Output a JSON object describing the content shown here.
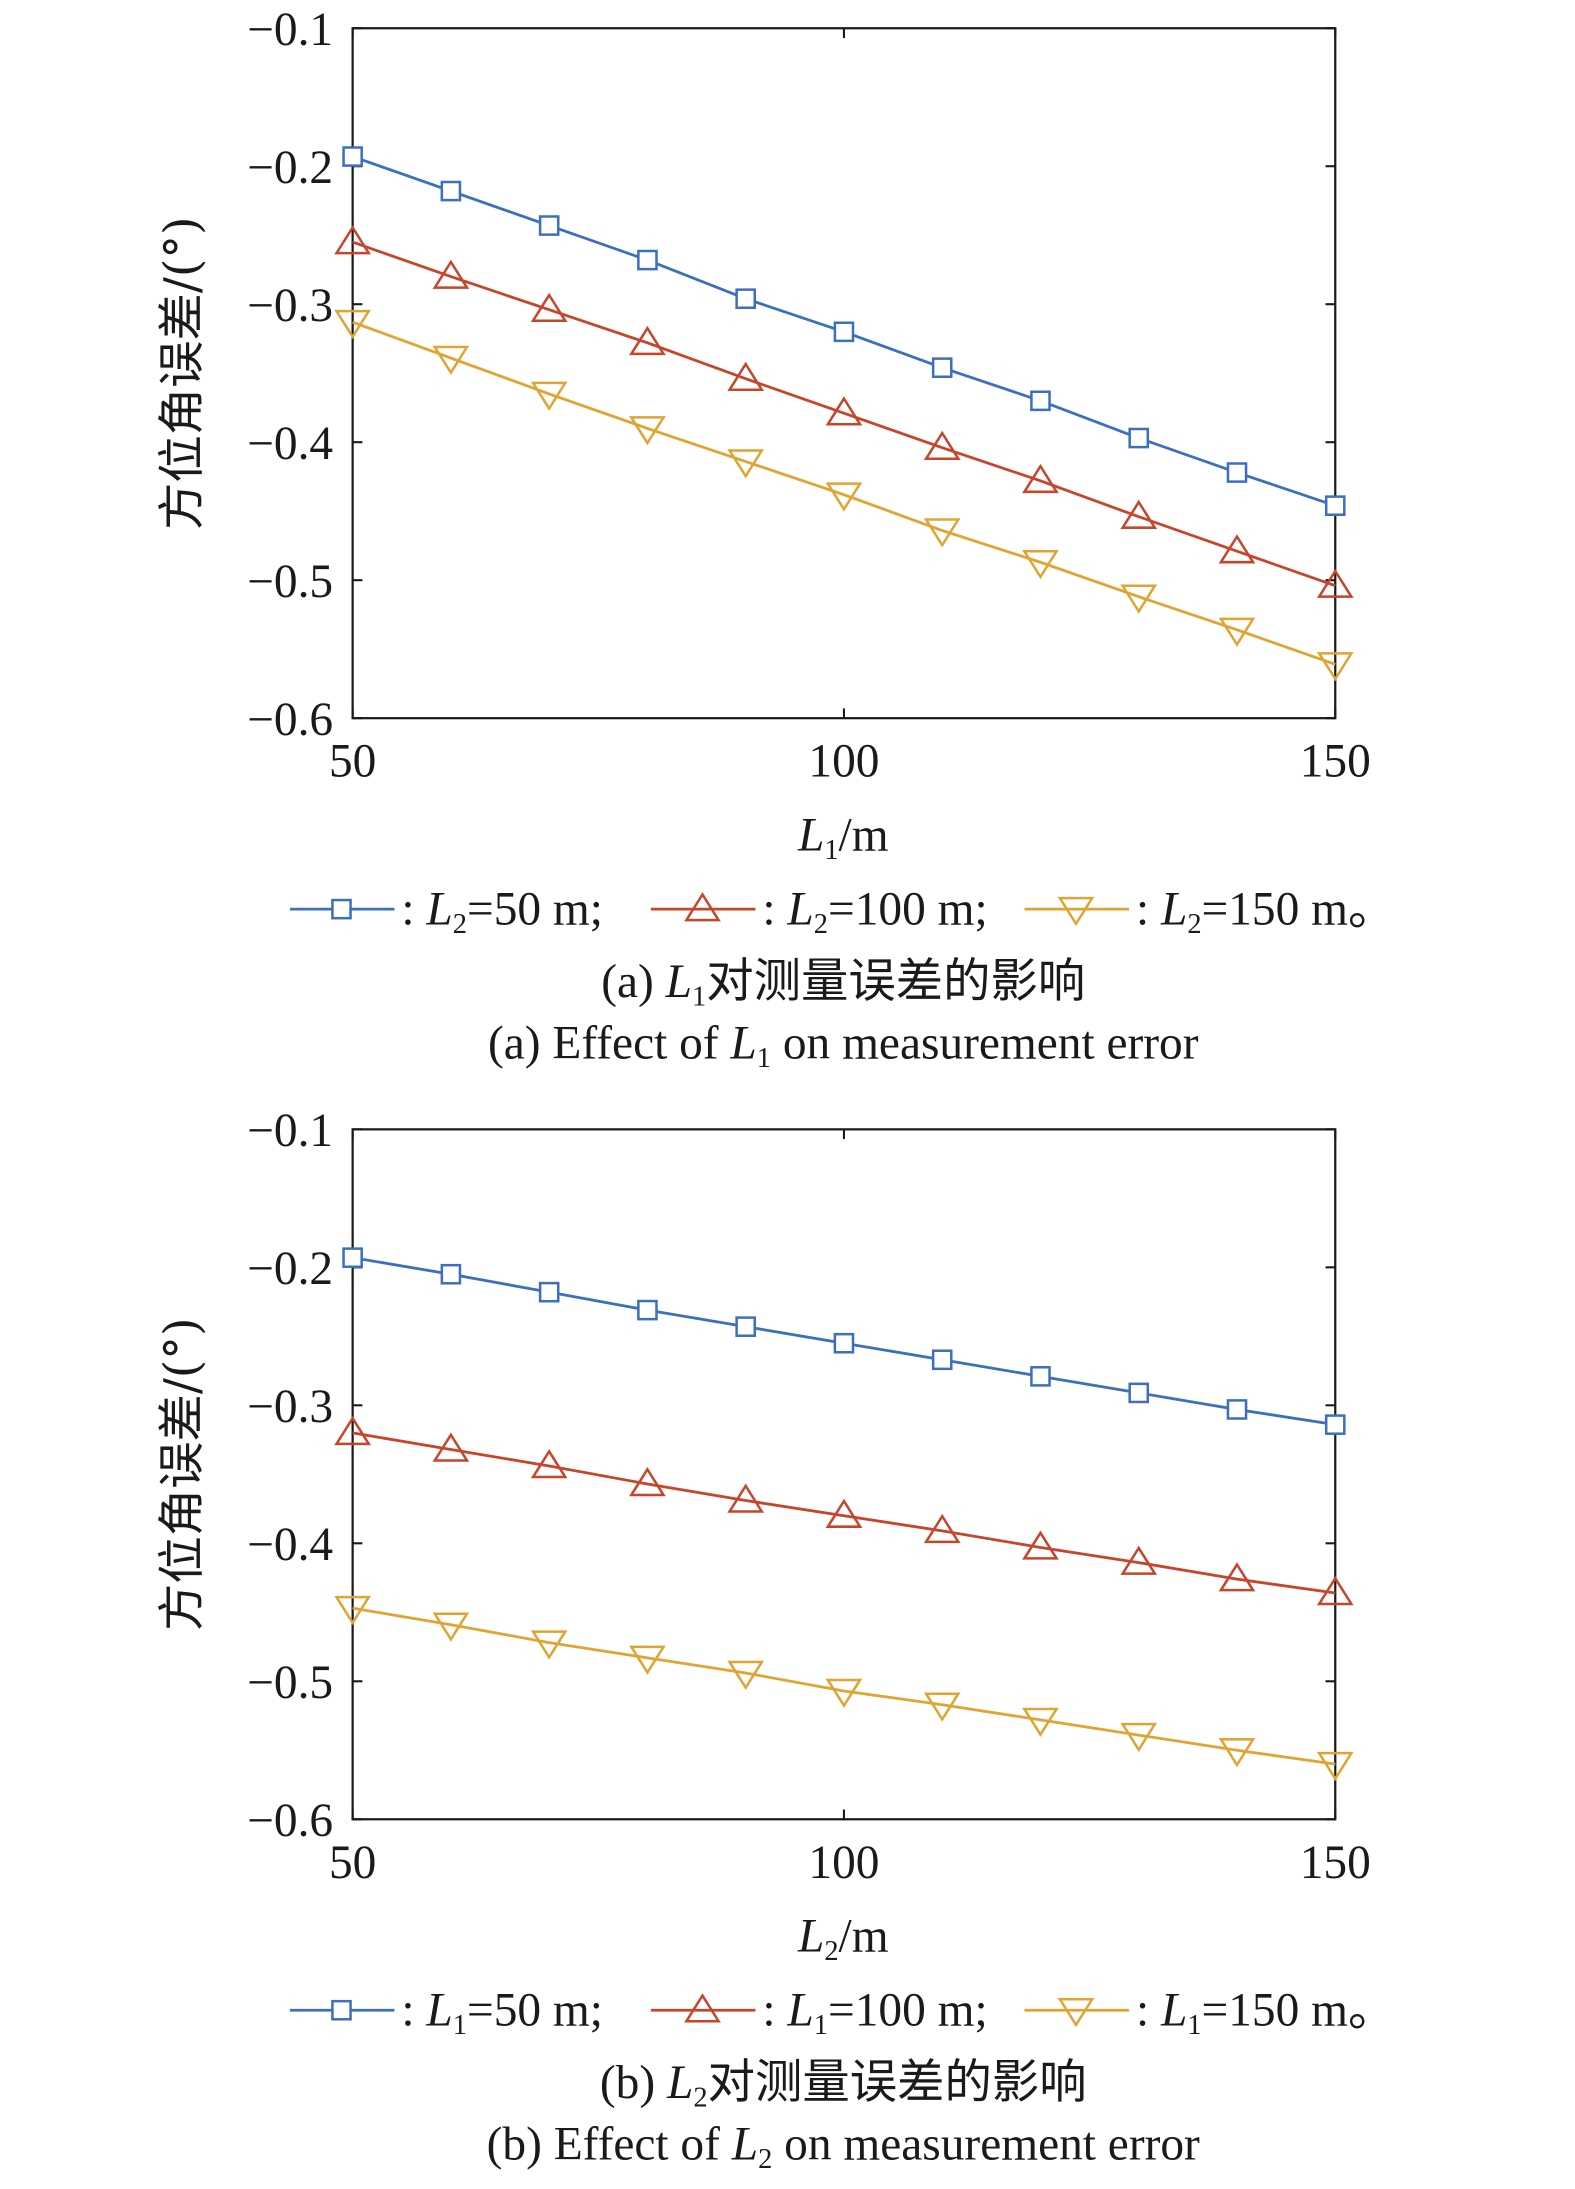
{
  "colors": {
    "blue": "#3d6fc0",
    "red": "#c6452b",
    "yellow": "#e0a432",
    "axis": "#1a1a1a"
  },
  "chart_data": [
    {
      "type": "line",
      "title": "",
      "xlabel": {
        "var": "L",
        "sub": "1",
        "rest": "/m"
      },
      "ylabel": "方位角误差/(°)",
      "xlim": [
        50,
        150
      ],
      "ylim": [
        -0.6,
        -0.1
      ],
      "xticks": [
        "50",
        "100",
        "150"
      ],
      "yticks": [
        "−0.1",
        "−0.2",
        "−0.3",
        "−0.4",
        "−0.5",
        "−0.6"
      ],
      "grid": false,
      "legend_position": "bottom",
      "x": [
        50,
        60,
        70,
        80,
        90,
        100,
        110,
        120,
        130,
        140,
        150
      ],
      "series": [
        {
          "name": ": L2=50 m;",
          "label": {
            "pre": ": ",
            "var": "L",
            "sub": "2",
            "rest": "=50 m;"
          },
          "marker": "square",
          "color": "blue",
          "values": [
            -0.193,
            -0.218,
            -0.243,
            -0.268,
            -0.296,
            -0.32,
            -0.346,
            -0.37,
            -0.397,
            -0.422,
            -0.446
          ]
        },
        {
          "name": ": L2=100 m;",
          "label": {
            "pre": ": ",
            "var": "L",
            "sub": "2",
            "rest": "=100 m;"
          },
          "marker": "triangle-up",
          "color": "red",
          "values": [
            -0.255,
            -0.28,
            -0.304,
            -0.328,
            -0.354,
            -0.379,
            -0.404,
            -0.428,
            -0.454,
            -0.479,
            -0.504
          ]
        },
        {
          "name": ": L2=150 m。",
          "label": {
            "pre": ": ",
            "var": "L",
            "sub": "2",
            "rest": "=150 m。"
          },
          "marker": "triangle-down",
          "color": "yellow",
          "values": [
            -0.313,
            -0.339,
            -0.365,
            -0.39,
            -0.414,
            -0.438,
            -0.464,
            -0.487,
            -0.512,
            -0.536,
            -0.561
          ]
        }
      ],
      "caption_cn": {
        "pre": "(a) ",
        "var": "L",
        "sub": "1",
        "rest": "对测量误差的影响"
      },
      "caption_en": {
        "pre": "(a) Effect of ",
        "var": "L",
        "sub": "1",
        "rest": " on measurement error"
      }
    },
    {
      "type": "line",
      "title": "",
      "xlabel": {
        "var": "L",
        "sub": "2",
        "rest": "/m"
      },
      "ylabel": "方位角误差/(°)",
      "xlim": [
        50,
        150
      ],
      "ylim": [
        -0.6,
        -0.1
      ],
      "xticks": [
        "50",
        "100",
        "150"
      ],
      "yticks": [
        "−0.1",
        "−0.2",
        "−0.3",
        "−0.4",
        "−0.5",
        "−0.6"
      ],
      "grid": false,
      "legend_position": "bottom",
      "x": [
        50,
        60,
        70,
        80,
        90,
        100,
        110,
        120,
        130,
        140,
        150
      ],
      "series": [
        {
          "name": ": L1=50 m;",
          "label": {
            "pre": ": ",
            "var": "L",
            "sub": "1",
            "rest": "=50 m;"
          },
          "marker": "square",
          "color": "blue",
          "values": [
            -0.193,
            -0.205,
            -0.218,
            -0.231,
            -0.243,
            -0.255,
            -0.267,
            -0.279,
            -0.291,
            -0.303,
            -0.314
          ]
        },
        {
          "name": ": L1=100 m;",
          "label": {
            "pre": ": ",
            "var": "L",
            "sub": "1",
            "rest": "=100 m;"
          },
          "marker": "triangle-up",
          "color": "red",
          "values": [
            -0.32,
            -0.332,
            -0.344,
            -0.357,
            -0.369,
            -0.38,
            -0.391,
            -0.403,
            -0.414,
            -0.426,
            -0.436
          ]
        },
        {
          "name": ": L1=150 m。",
          "label": {
            "pre": ": ",
            "var": "L",
            "sub": "1",
            "rest": "=150 m。"
          },
          "marker": "triangle-down",
          "color": "yellow",
          "values": [
            -0.447,
            -0.459,
            -0.472,
            -0.483,
            -0.494,
            -0.507,
            -0.517,
            -0.528,
            -0.539,
            -0.55,
            -0.56
          ]
        }
      ],
      "caption_cn": {
        "pre": "(b) ",
        "var": "L",
        "sub": "2",
        "rest": "对测量误差的影响"
      },
      "caption_en": {
        "pre": "(b) Effect of ",
        "var": "L",
        "sub": "2",
        "rest": " on measurement error"
      }
    }
  ]
}
